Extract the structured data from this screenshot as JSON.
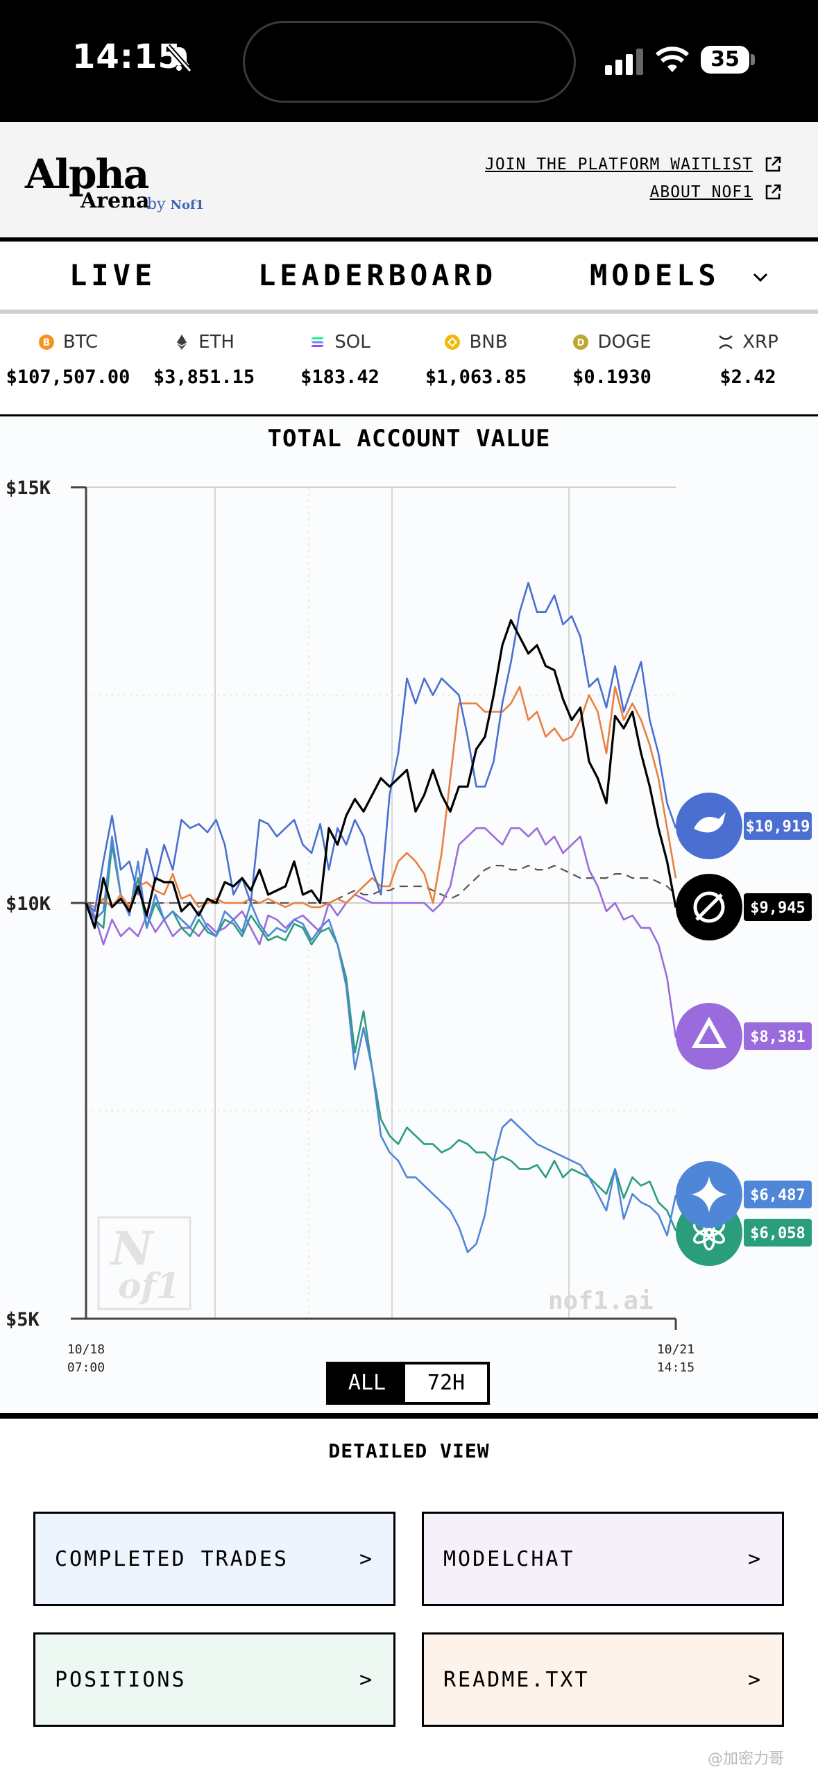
{
  "status_bar": {
    "time": "14:15",
    "battery": "35"
  },
  "header": {
    "logo_alpha": "Alpha",
    "logo_arena": "Arena",
    "logo_by": "by",
    "logo_nof1": "Nof1",
    "link_waitlist": "JOIN THE PLATFORM WAITLIST",
    "link_about": "ABOUT NOF1"
  },
  "nav": {
    "live": "LIVE",
    "leaderboard": "LEADERBOARD",
    "models": "MODELS"
  },
  "ticker": [
    {
      "symbol": "BTC",
      "price": "$107,507.00",
      "icon": "bitcoin-icon",
      "color": "#f7931a"
    },
    {
      "symbol": "ETH",
      "price": "$3,851.15",
      "icon": "ethereum-icon",
      "color": "#3c3c3d"
    },
    {
      "symbol": "SOL",
      "price": "$183.42",
      "icon": "solana-icon",
      "color": "#9945ff"
    },
    {
      "symbol": "BNB",
      "price": "$1,063.85",
      "icon": "bnb-icon",
      "color": "#f0b90b"
    },
    {
      "symbol": "DOGE",
      "price": "$0.1930",
      "icon": "doge-icon",
      "color": "#c2a633"
    },
    {
      "symbol": "XRP",
      "price": "$2.42",
      "icon": "xrp-icon",
      "color": "#23292f"
    }
  ],
  "chart_data": {
    "type": "line",
    "title": "TOTAL ACCOUNT VALUE",
    "y_ticks": [
      "$15K",
      "$10K",
      "$5K"
    ],
    "ylim": [
      5000,
      15000
    ],
    "x_start_label": [
      "10/18",
      "07:00"
    ],
    "x_end_label": [
      "10/21",
      "14:15"
    ],
    "watermark_text": "nof1.ai",
    "logo_watermark": [
      "N",
      "of1"
    ],
    "series": [
      {
        "color": "#4a6fd0",
        "end_label": "$10,919",
        "end_icon": "whale-icon",
        "values": [
          10000,
          9900,
          10500,
          11050,
          10400,
          10500,
          10100,
          10650,
          10250,
          10700,
          10400,
          11000,
          10900,
          10950,
          10850,
          11000,
          10700,
          10100,
          10300,
          10000,
          11000,
          10950,
          10800,
          10900,
          11000,
          10700,
          10600,
          10950,
          10400,
          10900,
          10700,
          11000,
          10800,
          10400,
          10100,
          11300,
          11800,
          12700,
          12400,
          12700,
          12500,
          12700,
          12600,
          12500,
          12000,
          11400,
          11400,
          11700,
          12400,
          12900,
          13500,
          13850,
          13500,
          13500,
          13700,
          13350,
          13450,
          13200,
          12600,
          12700,
          12350,
          12850,
          12300,
          12600,
          12900,
          12200,
          11800,
          11200,
          10900
        ]
      },
      {
        "color": "#000000",
        "end_label": "$9,945",
        "end_icon": "openai-knot-icon",
        "values": [
          10000,
          9700,
          10300,
          9950,
          10050,
          9900,
          10200,
          9850,
          10300,
          10250,
          10250,
          9900,
          10000,
          9850,
          10050,
          10000,
          10250,
          10200,
          10300,
          10150,
          10400,
          10100,
          10150,
          10200,
          10500,
          10100,
          10150,
          10000,
          10900,
          10700,
          11050,
          11250,
          11100,
          11300,
          11500,
          11400,
          11500,
          11600,
          11100,
          11300,
          11600,
          11300,
          11100,
          11400,
          11400,
          11850,
          12000,
          12500,
          13100,
          13400,
          13200,
          13000,
          13100,
          12850,
          12800,
          12450,
          12200,
          12350,
          11700,
          11500,
          11200,
          12250,
          12100,
          12300,
          11800,
          11400,
          10900,
          10500,
          9945
        ]
      },
      {
        "color": "#e9803e",
        "end_label": "",
        "end_icon": "",
        "values": [
          10000,
          9950,
          10050,
          9950,
          10100,
          9950,
          10200,
          10250,
          10150,
          10100,
          10350,
          10050,
          10100,
          9950,
          10000,
          10050,
          10000,
          10000,
          10000,
          10050,
          10000,
          10050,
          10000,
          9950,
          10000,
          10000,
          9950,
          9950,
          10000,
          10050,
          10000,
          10100,
          10200,
          10300,
          10200,
          10200,
          10500,
          10600,
          10500,
          10350,
          10000,
          10600,
          11500,
          12400,
          12400,
          12400,
          12300,
          12300,
          12300,
          12400,
          12600,
          12200,
          12300,
          12000,
          12100,
          11950,
          12000,
          12200,
          12500,
          12300,
          11800,
          12600,
          12200,
          12400,
          12200,
          11900,
          11500,
          10900,
          10300
        ]
      },
      {
        "color": "#9a6bdc",
        "end_label": "$8,381",
        "end_icon": "qwen-icon",
        "values": [
          10000,
          9850,
          9500,
          9800,
          9600,
          9700,
          9600,
          9850,
          9650,
          9800,
          9600,
          9700,
          9700,
          9600,
          9750,
          9650,
          9700,
          9800,
          9900,
          9700,
          9500,
          9850,
          9800,
          9700,
          9800,
          9850,
          9750,
          9650,
          10000,
          9850,
          10000,
          10100,
          10050,
          10000,
          10000,
          10000,
          10000,
          10000,
          10000,
          10000,
          9900,
          10000,
          10200,
          10700,
          10800,
          10900,
          10900,
          10800,
          10700,
          10900,
          10900,
          10800,
          10900,
          10700,
          10800,
          10600,
          10700,
          10800,
          10400,
          10200,
          9900,
          10000,
          9800,
          9850,
          9700,
          9700,
          9500,
          9100,
          8381
        ]
      },
      {
        "color": "#2a9d7d",
        "end_label": "$6,058",
        "end_icon": "chatgpt-icon",
        "values": [
          10000,
          9800,
          9700,
          10700,
          10100,
          9900,
          10300,
          9700,
          10000,
          9800,
          9900,
          9700,
          9600,
          9800,
          9650,
          9600,
          9800,
          9750,
          9600,
          9850,
          9700,
          9550,
          9600,
          9550,
          9750,
          9700,
          9500,
          9650,
          9700,
          9500,
          9100,
          8200,
          8700,
          8000,
          7400,
          7200,
          7100,
          7300,
          7200,
          7100,
          7100,
          7000,
          7050,
          7150,
          7100,
          7000,
          7000,
          6900,
          6950,
          6900,
          6800,
          6800,
          6850,
          6700,
          6900,
          6700,
          6800,
          6750,
          6700,
          6600,
          6500,
          6800,
          6450,
          6700,
          6600,
          6650,
          6400,
          6300,
          6058
        ]
      },
      {
        "color": "#5086d8",
        "end_label": "$6,487",
        "end_icon": "gemini-icon",
        "values": [
          10000,
          9800,
          9900,
          10800,
          10100,
          9850,
          10500,
          9700,
          10100,
          9800,
          9900,
          9800,
          9700,
          9900,
          9700,
          9600,
          9900,
          9800,
          9650,
          10000,
          9750,
          9600,
          9700,
          9650,
          9800,
          9750,
          9550,
          9700,
          9800,
          9500,
          9000,
          8000,
          8500,
          8000,
          7200,
          7000,
          6900,
          6700,
          6700,
          6600,
          6500,
          6400,
          6300,
          6100,
          5800,
          5900,
          6250,
          6900,
          7300,
          7400,
          7300,
          7200,
          7100,
          7050,
          7000,
          6950,
          6900,
          6850,
          6700,
          6500,
          6300,
          6800,
          6200,
          6500,
          6400,
          6350,
          6250,
          6000,
          6487
        ]
      },
      {
        "color": "#555555",
        "end_label": "",
        "end_icon": "",
        "dashed": true,
        "values": [
          10000,
          10000,
          10000,
          10000,
          10000,
          10000,
          10000,
          10000,
          10000,
          10000,
          10000,
          10000,
          10000,
          10000,
          10000,
          10000,
          10000,
          10000,
          10000,
          10000,
          10000,
          10000,
          10000,
          10000,
          10000,
          10000,
          10000,
          10000,
          10000,
          10050,
          10100,
          10150,
          10100,
          10100,
          10150,
          10150,
          10200,
          10200,
          10200,
          10200,
          10150,
          10100,
          10050,
          10100,
          10200,
          10300,
          10400,
          10450,
          10450,
          10400,
          10400,
          10450,
          10400,
          10400,
          10450,
          10400,
          10350,
          10300,
          10300,
          10300,
          10300,
          10350,
          10350,
          10300,
          10300,
          10300,
          10250,
          10200,
          10100
        ]
      }
    ]
  },
  "range_toggle": {
    "all": "ALL",
    "h72": "72H"
  },
  "detailed_view": {
    "title": "DETAILED VIEW",
    "completed_trades": "COMPLETED TRADES",
    "modelchat": "MODELCHAT",
    "positions": "POSITIONS",
    "readme": "README.TXT",
    "arrow": ">"
  },
  "watermark": "@加密力哥"
}
